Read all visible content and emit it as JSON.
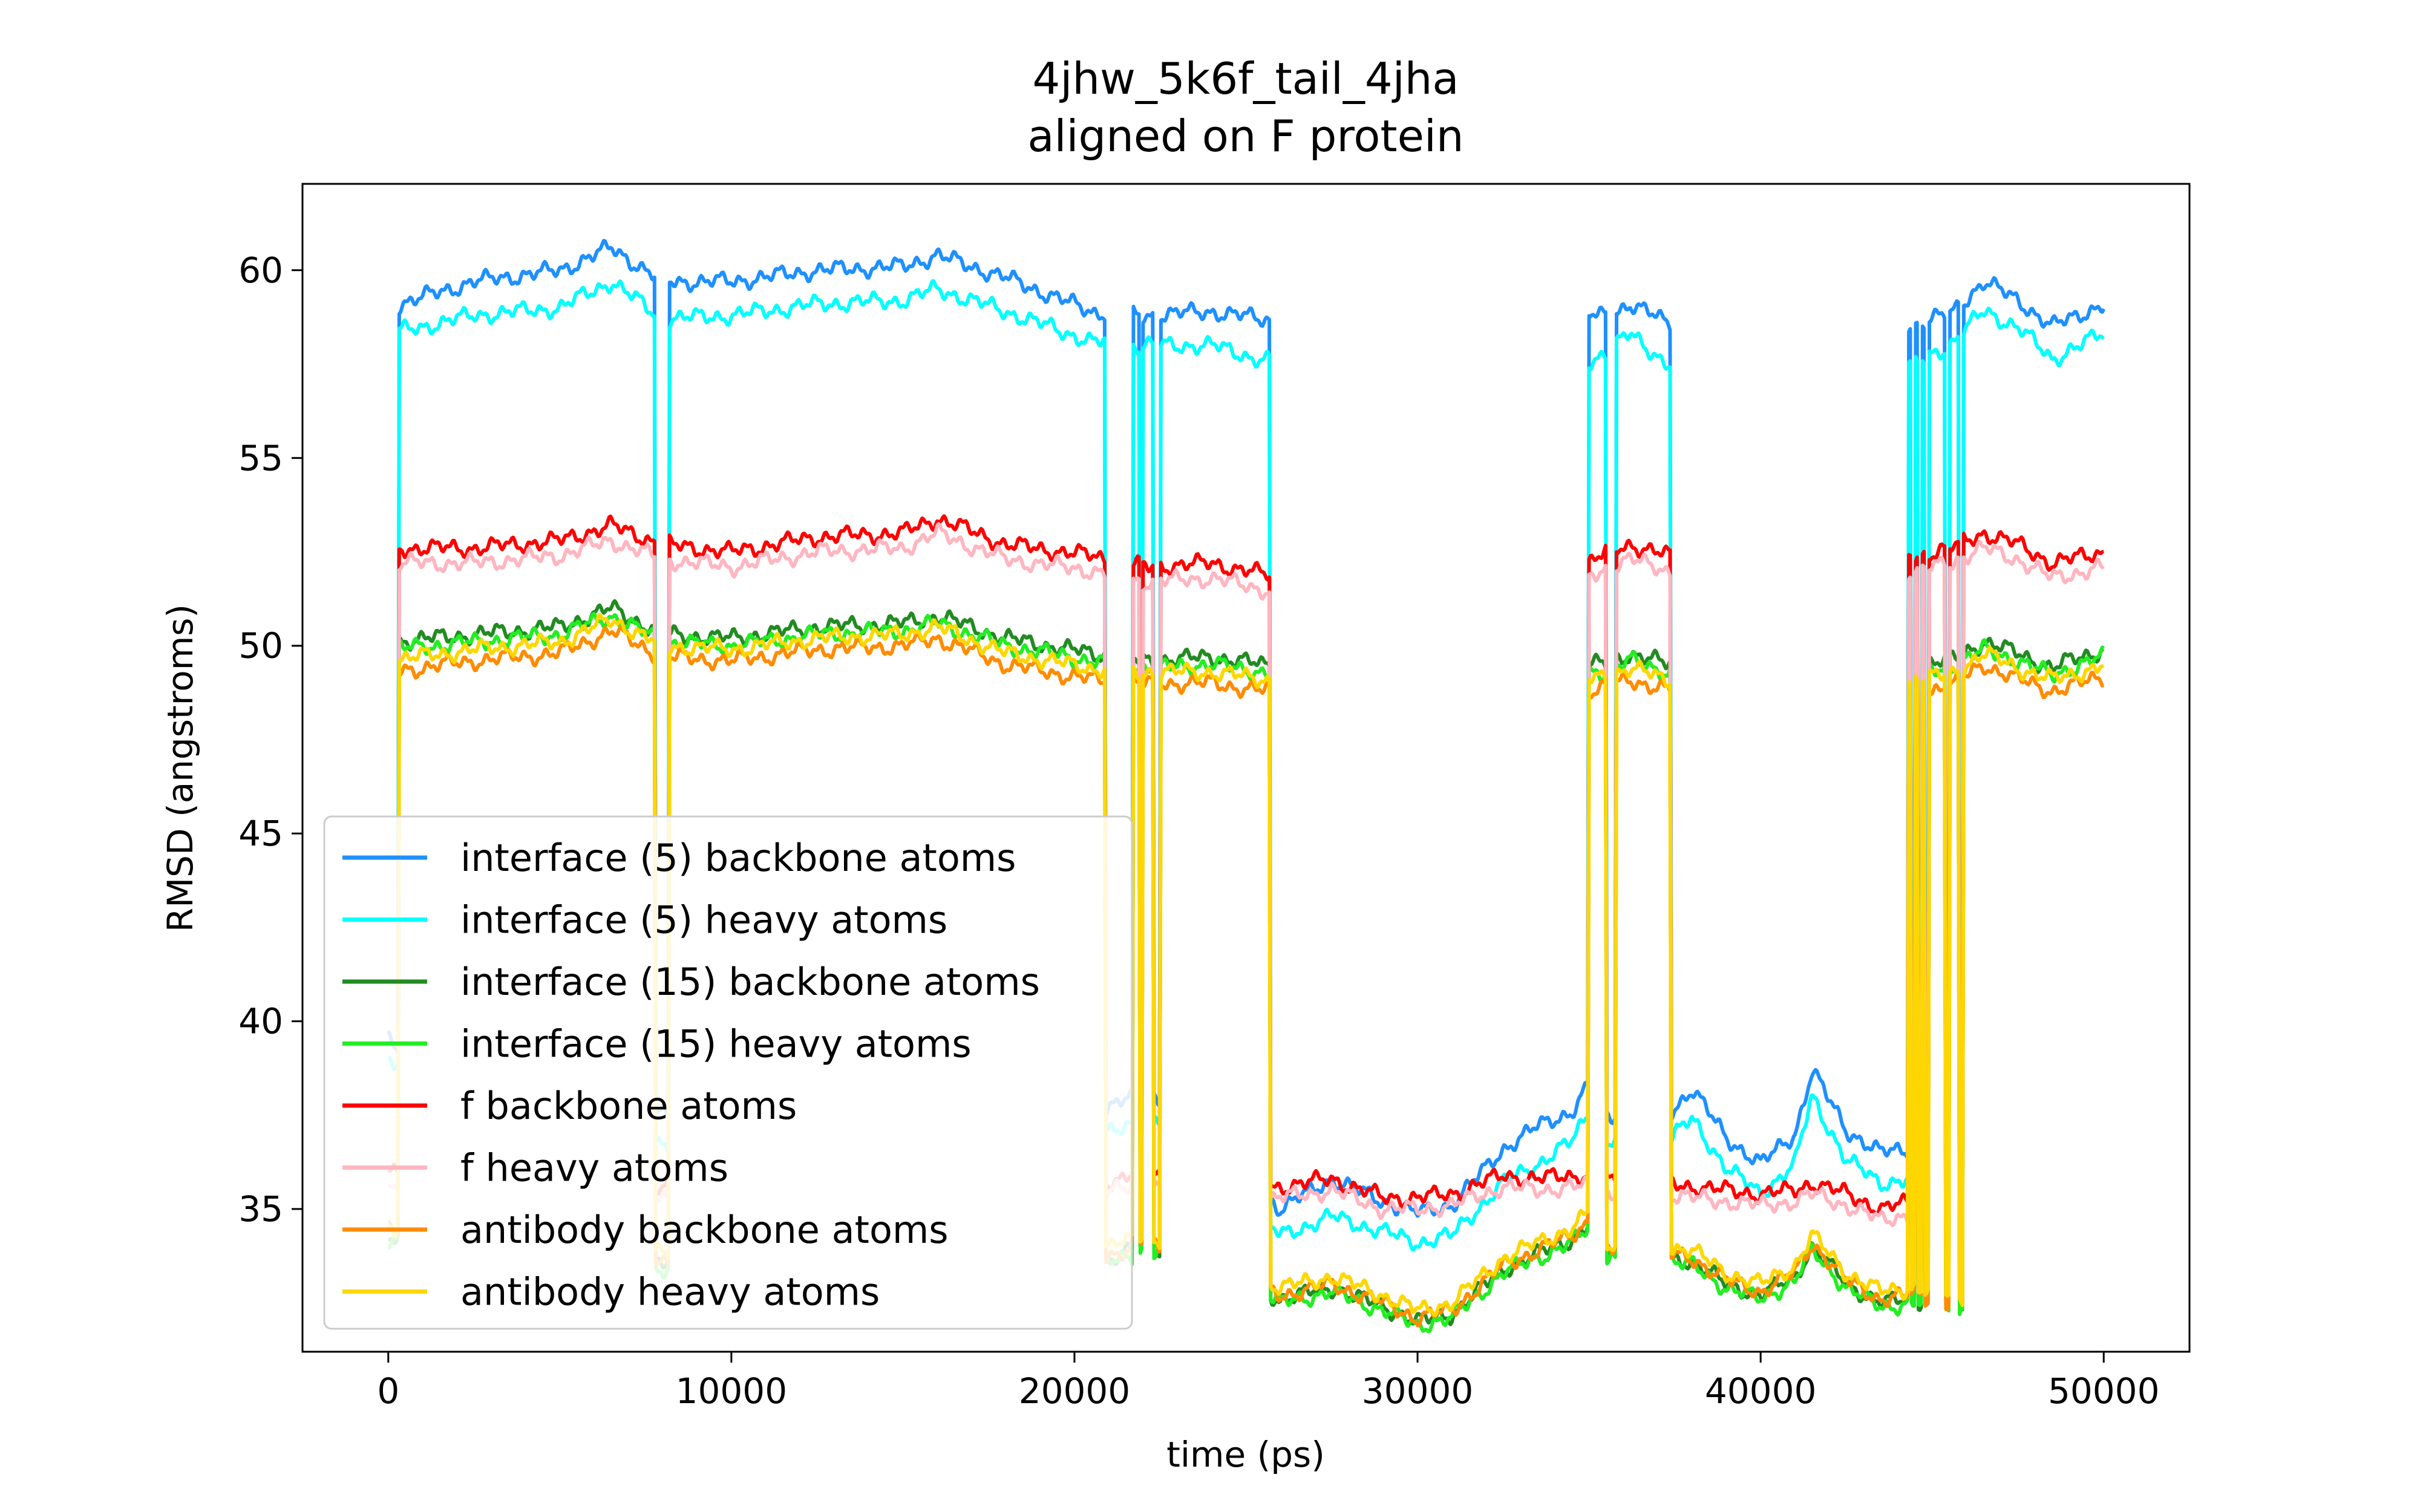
{
  "chart_data": {
    "type": "line",
    "title": "4jhw_5k6f_tail_4jha",
    "subtitle": "aligned on F protein",
    "xlabel": "time (ps)",
    "ylabel": "RMSD (angstroms)",
    "xlim": [
      -2500,
      52500
    ],
    "ylim": [
      31.2,
      62.3
    ],
    "xticks": [
      0,
      10000,
      20000,
      30000,
      40000,
      50000
    ],
    "xtick_labels": [
      "0",
      "10000",
      "20000",
      "30000",
      "40000",
      "50000"
    ],
    "yticks": [
      35,
      40,
      45,
      50,
      55,
      60
    ],
    "ytick_labels": [
      "35",
      "40",
      "45",
      "50",
      "55",
      "60"
    ],
    "grid": false,
    "legend_position": "lower-left",
    "state_profile": {
      "x": [
        0,
        150,
        300,
        7600,
        7800,
        8200,
        20700,
        20900,
        21500,
        21700,
        21900,
        22000,
        22300,
        22500,
        25500,
        25700,
        34900,
        35000,
        35500,
        35800,
        36200,
        36400,
        37200,
        37400,
        40200,
        40300,
        44200,
        44300,
        44400,
        44500,
        44600,
        44700,
        44800,
        44900,
        45400,
        45500,
        45800,
        45900,
        48200,
        48300,
        50000
      ],
      "state": [
        0,
        0,
        1,
        1,
        0,
        1,
        1,
        0,
        0,
        1,
        0,
        1,
        0,
        1,
        1,
        0,
        0,
        1,
        0,
        1,
        1,
        1,
        1,
        0,
        0,
        0,
        0,
        1,
        0,
        1,
        0,
        1,
        0,
        1,
        0,
        1,
        0,
        1,
        1,
        1,
        1
      ]
    },
    "series": [
      {
        "name": "interface (5) backbone atoms",
        "color": "#1e90ff",
        "x": [
          0,
          2500,
          5000,
          6500,
          8000,
          10000,
          12500,
          15000,
          16000,
          18000,
          20500,
          22000,
          24000,
          25500,
          26000,
          27500,
          29000,
          30000,
          31000,
          32500,
          33500,
          34500,
          35000,
          35500,
          36200,
          37300,
          38000,
          39000,
          40000,
          41000,
          41500,
          42500,
          43500,
          44500,
          45500,
          46500,
          47500,
          48500,
          49000,
          50000
        ],
        "high": [
          59.0,
          59.7,
          60.0,
          60.6,
          59.7,
          59.7,
          60.0,
          60.1,
          60.4,
          59.8,
          58.9,
          58.8,
          58.9,
          58.7,
          58.7,
          58.7,
          58.7,
          58.7,
          58.7,
          58.7,
          58.7,
          58.8,
          58.8,
          58.8,
          59.1,
          58.6,
          58.6,
          58.6,
          58.6,
          58.6,
          58.6,
          58.6,
          58.6,
          58.6,
          58.8,
          59.7,
          59.2,
          58.5,
          58.7,
          59.1
        ],
        "low": [
          39.6,
          37.5,
          37.5,
          37.5,
          37.5,
          37.5,
          37.5,
          37.5,
          37.5,
          37.5,
          37.5,
          38.1,
          37.5,
          35.5,
          35.0,
          35.8,
          35.2,
          34.9,
          35.1,
          36.6,
          37.2,
          37.6,
          38.3,
          37.5,
          37.5,
          37.5,
          38.2,
          36.9,
          36.2,
          37.0,
          38.7,
          37.1,
          36.5,
          36.6,
          35.8,
          35.8,
          35.8,
          35.8,
          35.8,
          35.8
        ]
      },
      {
        "name": "interface (5) heavy atoms",
        "color": "#00ffff",
        "x": [
          0,
          2500,
          5000,
          6500,
          8000,
          10000,
          12500,
          15000,
          16000,
          18000,
          20500,
          22000,
          24000,
          25500,
          26000,
          27500,
          29000,
          30000,
          31000,
          32500,
          33500,
          34500,
          35000,
          35500,
          36200,
          37300,
          38000,
          39000,
          40000,
          41000,
          41500,
          42500,
          43500,
          44500,
          45500,
          46500,
          47500,
          48500,
          49000,
          50000
        ],
        "high": [
          58.3,
          58.8,
          59.0,
          59.7,
          58.7,
          58.8,
          59.1,
          59.2,
          59.5,
          58.9,
          58.1,
          58.0,
          58.0,
          57.6,
          57.6,
          57.6,
          57.6,
          57.6,
          57.6,
          57.6,
          57.6,
          57.6,
          57.6,
          57.8,
          58.3,
          57.5,
          57.5,
          57.5,
          57.5,
          57.5,
          57.5,
          57.5,
          57.5,
          57.5,
          58.0,
          58.9,
          58.5,
          57.6,
          57.9,
          58.3
        ],
        "low": [
          39.0,
          36.8,
          36.8,
          36.8,
          36.8,
          36.8,
          36.8,
          36.8,
          36.8,
          36.8,
          36.8,
          37.5,
          36.8,
          34.7,
          34.3,
          34.8,
          34.4,
          34.1,
          34.3,
          35.7,
          36.2,
          36.8,
          37.6,
          36.8,
          36.8,
          36.8,
          37.4,
          36.1,
          35.4,
          36.2,
          38.0,
          36.3,
          35.7,
          35.8,
          35.1,
          35.1,
          35.1,
          35.1,
          35.1,
          35.1
        ]
      },
      {
        "name": "interface (15) backbone atoms",
        "color": "#228b22",
        "x": [
          0,
          2500,
          5000,
          6500,
          8000,
          10000,
          12500,
          15000,
          16000,
          18000,
          20500,
          22000,
          24000,
          25500,
          26000,
          27500,
          29000,
          30000,
          31000,
          32500,
          33500,
          34500,
          35000,
          35500,
          36200,
          37300,
          38000,
          39000,
          40000,
          41000,
          41500,
          42500,
          43500,
          44500,
          45500,
          46500,
          47500,
          48500,
          49000,
          50000
        ],
        "high": [
          50.1,
          50.3,
          50.5,
          51.0,
          50.3,
          50.2,
          50.5,
          50.6,
          50.8,
          50.2,
          49.8,
          49.6,
          49.7,
          49.5,
          49.5,
          49.5,
          49.5,
          49.5,
          49.5,
          49.5,
          49.5,
          49.5,
          49.5,
          49.5,
          49.8,
          49.5,
          49.5,
          49.5,
          49.5,
          49.5,
          49.5,
          49.5,
          49.5,
          49.5,
          49.6,
          50.1,
          49.8,
          49.4,
          49.6,
          49.9
        ],
        "low": [
          34.3,
          33.5,
          33.5,
          33.5,
          33.5,
          33.5,
          33.5,
          33.5,
          33.5,
          33.5,
          33.5,
          34.0,
          33.5,
          32.8,
          32.6,
          32.9,
          32.4,
          32.0,
          32.2,
          33.4,
          33.8,
          34.2,
          34.6,
          33.8,
          33.8,
          33.7,
          33.6,
          33.0,
          32.7,
          33.2,
          34.0,
          33.0,
          32.5,
          32.6,
          32.4,
          32.4,
          32.4,
          32.4,
          32.4,
          32.4
        ]
      },
      {
        "name": "interface (15) heavy atoms",
        "color": "#22ee22",
        "x": [
          0,
          2500,
          5000,
          6500,
          8000,
          10000,
          12500,
          15000,
          16000,
          18000,
          20500,
          22000,
          24000,
          25500,
          26000,
          27500,
          29000,
          30000,
          31000,
          32500,
          33500,
          34500,
          35000,
          35500,
          36200,
          37300,
          38000,
          39000,
          40000,
          41000,
          41500,
          42500,
          43500,
          44500,
          45500,
          46500,
          47500,
          48500,
          49000,
          50000
        ],
        "high": [
          49.9,
          50.1,
          50.3,
          50.8,
          50.1,
          50.0,
          50.3,
          50.4,
          50.6,
          50.0,
          49.6,
          49.4,
          49.5,
          49.3,
          49.3,
          49.3,
          49.3,
          49.3,
          49.3,
          49.3,
          49.3,
          49.3,
          49.3,
          49.3,
          49.6,
          49.3,
          49.3,
          49.3,
          49.3,
          49.3,
          49.3,
          49.3,
          49.3,
          49.3,
          49.4,
          49.9,
          49.6,
          49.2,
          49.4,
          49.7
        ],
        "low": [
          34.2,
          33.4,
          33.4,
          33.4,
          33.4,
          33.4,
          33.4,
          33.4,
          33.4,
          33.4,
          33.4,
          33.9,
          33.4,
          32.7,
          32.5,
          32.8,
          32.3,
          31.9,
          32.1,
          33.3,
          33.7,
          34.1,
          34.5,
          33.7,
          33.7,
          33.6,
          33.5,
          32.9,
          32.6,
          33.1,
          33.9,
          32.9,
          32.4,
          32.5,
          32.3,
          32.3,
          32.3,
          32.3,
          32.3,
          32.3
        ]
      },
      {
        "name": "f backbone atoms",
        "color": "#ff0000",
        "x": [
          0,
          2500,
          5000,
          6500,
          8000,
          10000,
          12500,
          15000,
          16000,
          18000,
          20500,
          22000,
          24000,
          25500,
          26000,
          27500,
          29000,
          30000,
          31000,
          32500,
          33500,
          34500,
          35000,
          35500,
          36200,
          37300,
          38000,
          39000,
          40000,
          41000,
          41500,
          42500,
          43500,
          44500,
          45500,
          46500,
          47500,
          48500,
          49000,
          50000
        ],
        "high": [
          52.6,
          52.6,
          52.8,
          53.2,
          52.7,
          52.5,
          52.9,
          53.0,
          53.4,
          52.7,
          52.4,
          52.1,
          52.2,
          51.9,
          51.9,
          51.9,
          51.9,
          51.9,
          51.9,
          51.9,
          51.9,
          51.9,
          52.2,
          52.5,
          52.7,
          52.4,
          52.4,
          52.4,
          52.4,
          52.4,
          52.4,
          52.4,
          52.4,
          52.4,
          52.6,
          53.0,
          52.7,
          52.2,
          52.3,
          52.5
        ],
        "low": [
          36.0,
          35.6,
          35.6,
          35.6,
          35.6,
          35.6,
          35.6,
          35.6,
          35.6,
          35.6,
          35.6,
          36.0,
          35.6,
          35.5,
          35.6,
          35.8,
          35.3,
          35.3,
          35.4,
          35.9,
          35.8,
          35.9,
          35.9,
          35.7,
          35.7,
          35.7,
          35.6,
          35.5,
          35.4,
          35.5,
          35.7,
          35.4,
          35.0,
          35.2,
          35.4,
          35.4,
          35.4,
          35.4,
          35.4,
          35.4
        ]
      },
      {
        "name": "f heavy atoms",
        "color": "#ffb6c1",
        "x": [
          0,
          2500,
          5000,
          6500,
          8000,
          10000,
          12500,
          15000,
          16000,
          18000,
          20500,
          22000,
          24000,
          25500,
          26000,
          27500,
          29000,
          30000,
          31000,
          32500,
          33500,
          34500,
          35000,
          35500,
          36200,
          37300,
          38000,
          39000,
          40000,
          41000,
          41500,
          42500,
          43500,
          44500,
          45500,
          46500,
          47500,
          48500,
          49000,
          50000
        ],
        "high": [
          52.2,
          52.2,
          52.4,
          52.8,
          52.3,
          52.1,
          52.5,
          52.6,
          53.0,
          52.3,
          52.0,
          51.7,
          51.8,
          51.5,
          51.5,
          51.5,
          51.5,
          51.5,
          51.5,
          51.5,
          51.5,
          51.5,
          51.8,
          52.1,
          52.3,
          52.0,
          52.0,
          52.0,
          52.0,
          52.0,
          52.0,
          52.0,
          52.0,
          52.0,
          52.2,
          52.6,
          52.3,
          51.8,
          51.9,
          52.1
        ],
        "low": [
          35.6,
          35.3,
          35.3,
          35.3,
          35.3,
          35.3,
          35.3,
          35.3,
          35.3,
          35.3,
          35.3,
          35.7,
          35.3,
          35.2,
          35.3,
          35.5,
          35.0,
          35.0,
          35.1,
          35.6,
          35.5,
          35.6,
          35.6,
          35.4,
          35.4,
          35.4,
          35.3,
          35.2,
          35.1,
          35.2,
          35.4,
          35.1,
          34.7,
          34.9,
          35.1,
          35.1,
          35.1,
          35.1,
          35.1,
          35.1
        ]
      },
      {
        "name": "antibody backbone atoms",
        "color": "#ff8c00",
        "x": [
          0,
          2500,
          5000,
          6500,
          8000,
          10000,
          12500,
          15000,
          16000,
          18000,
          20500,
          22000,
          24000,
          25500,
          26000,
          27500,
          29000,
          30000,
          31000,
          32500,
          33500,
          34500,
          35000,
          35500,
          36200,
          37300,
          38000,
          39000,
          40000,
          41000,
          41500,
          42500,
          43500,
          44500,
          45500,
          46500,
          47500,
          48500,
          49000,
          50000
        ],
        "high": [
          49.3,
          49.6,
          49.8,
          50.4,
          49.7,
          49.6,
          49.9,
          50.0,
          50.2,
          49.5,
          49.1,
          49.0,
          49.0,
          48.8,
          48.8,
          48.8,
          48.8,
          48.8,
          48.8,
          48.8,
          48.8,
          48.8,
          48.8,
          48.9,
          49.1,
          48.8,
          48.8,
          48.8,
          48.8,
          48.8,
          48.8,
          48.8,
          48.8,
          48.8,
          48.9,
          49.5,
          49.1,
          48.8,
          48.9,
          49.2
        ],
        "low": [
          34.4,
          33.6,
          33.6,
          33.6,
          33.6,
          33.6,
          33.6,
          33.6,
          33.6,
          33.6,
          33.6,
          34.1,
          33.6,
          32.9,
          32.7,
          33.0,
          32.5,
          32.1,
          32.3,
          33.5,
          33.9,
          34.3,
          34.7,
          33.9,
          33.9,
          33.8,
          33.7,
          33.1,
          32.8,
          33.3,
          34.1,
          33.1,
          32.6,
          32.7,
          32.5,
          32.5,
          32.5,
          32.5,
          32.5,
          32.5
        ]
      },
      {
        "name": "antibody heavy atoms",
        "color": "#ffd700",
        "x": [
          0,
          2500,
          5000,
          6500,
          8000,
          10000,
          12500,
          15000,
          16000,
          18000,
          20500,
          22000,
          24000,
          25500,
          26000,
          27500,
          29000,
          30000,
          31000,
          32500,
          33500,
          34500,
          35000,
          35500,
          36200,
          37300,
          38000,
          39000,
          40000,
          41000,
          41500,
          42500,
          43500,
          44500,
          45500,
          46500,
          47500,
          48500,
          49000,
          50000
        ],
        "high": [
          49.6,
          49.9,
          50.1,
          50.7,
          50.0,
          49.9,
          50.2,
          50.3,
          50.5,
          49.8,
          49.4,
          49.3,
          49.3,
          49.1,
          49.1,
          49.1,
          49.1,
          49.1,
          49.1,
          49.1,
          49.1,
          49.1,
          49.1,
          49.2,
          49.4,
          49.1,
          49.1,
          49.1,
          49.1,
          49.1,
          49.1,
          49.1,
          49.1,
          49.1,
          49.2,
          49.8,
          49.4,
          49.1,
          49.2,
          49.5
        ],
        "low": [
          34.6,
          33.8,
          33.8,
          33.8,
          33.8,
          33.8,
          33.8,
          33.8,
          33.8,
          33.8,
          33.8,
          34.3,
          33.8,
          33.1,
          32.9,
          33.2,
          32.7,
          32.3,
          32.5,
          33.7,
          34.1,
          34.5,
          34.9,
          34.1,
          34.1,
          34.0,
          33.9,
          33.3,
          33.0,
          33.5,
          34.3,
          33.3,
          32.8,
          32.9,
          32.7,
          32.7,
          32.7,
          32.7,
          32.7,
          32.7
        ]
      }
    ]
  }
}
